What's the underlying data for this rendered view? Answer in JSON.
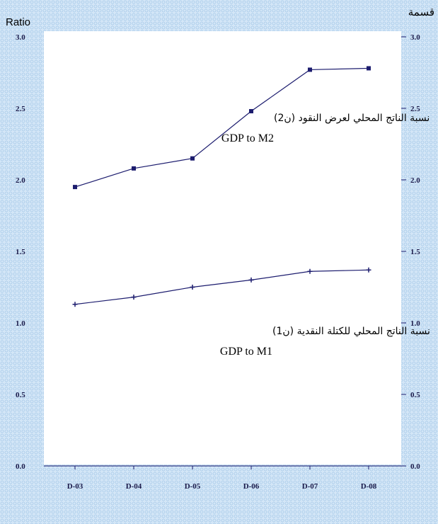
{
  "chart_data": {
    "type": "line",
    "ylabel_left": "Ratio",
    "ylabel_right": "قسمة",
    "categories": [
      "D-03",
      "D-04",
      "D-05",
      "D-06",
      "D-07",
      "D-08"
    ],
    "ylim": [
      0.0,
      3.0
    ],
    "yticks_left": [
      "0.0",
      "0.5",
      "1.0",
      "1.5",
      "2.0",
      "2.5",
      "3.0"
    ],
    "yticks_right": [
      "0.0",
      "0.5",
      "1.0",
      "1.5",
      "2.0",
      "2.5",
      "3.0"
    ],
    "series": [
      {
        "label_ar": "نسبة الناتج المحلي لعرض النقود (ن2)",
        "label_en": "GDP to M2",
        "marker": "square",
        "color": "#1c1c6e",
        "values": [
          1.95,
          2.08,
          2.15,
          2.48,
          2.77,
          2.78
        ]
      },
      {
        "label_ar": "نسبة الناتج المحلي للكتلة النقدية (ن1)",
        "label_en": "GDP to M1",
        "marker": "plus",
        "color": "#1c1c6e",
        "values": [
          1.13,
          1.18,
          1.25,
          1.3,
          1.36,
          1.37
        ]
      }
    ]
  }
}
